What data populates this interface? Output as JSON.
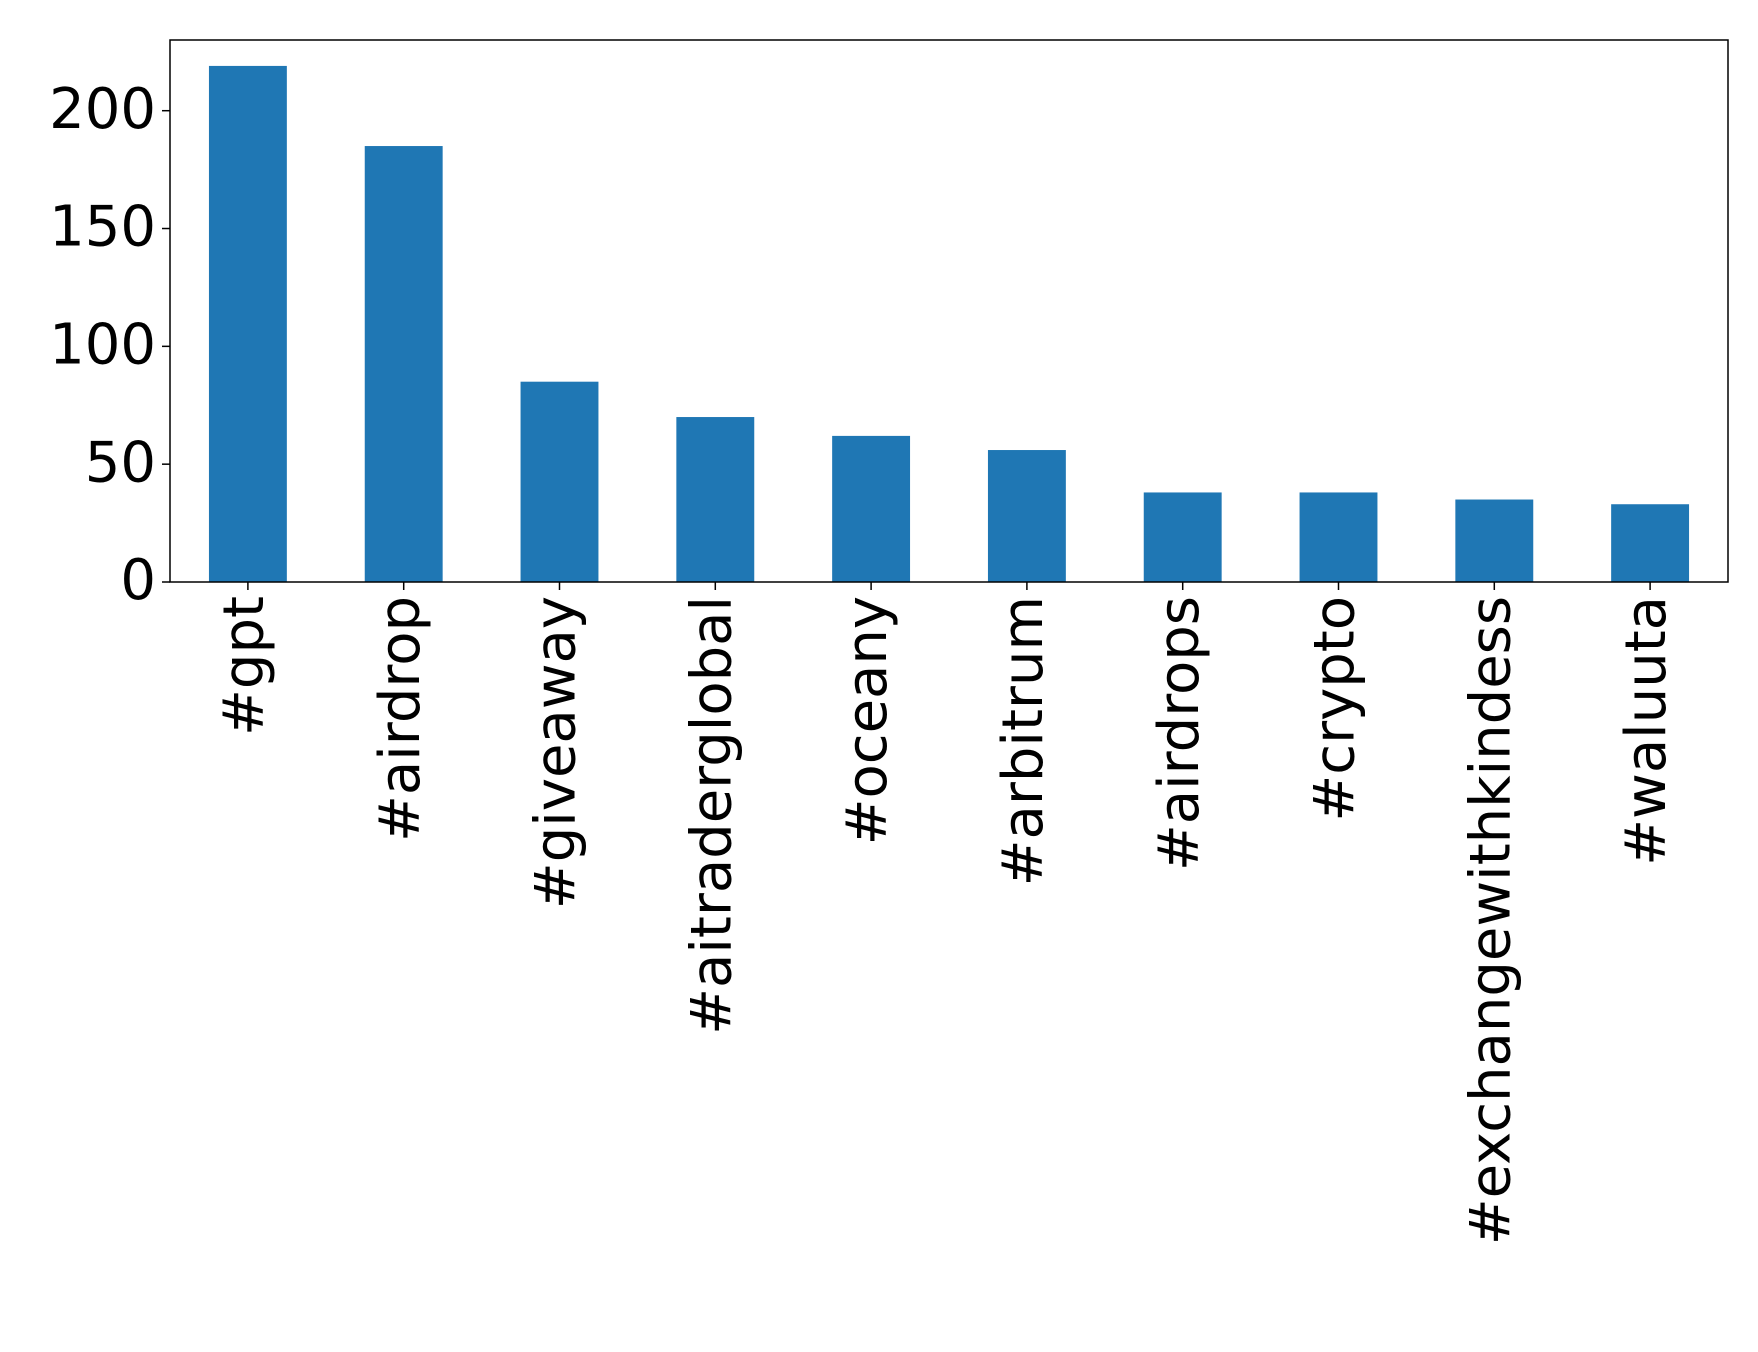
{
  "chart_data": {
    "type": "bar",
    "categories": [
      "#gpt",
      "#airdrop",
      "#giveaway",
      "#aitraderglobal",
      "#oceany",
      "#arbitrum",
      "#airdrops",
      "#crypto",
      "#exchangewithkindess",
      "#waluuta"
    ],
    "values": [
      219,
      185,
      85,
      70,
      62,
      56,
      38,
      38,
      35,
      33
    ],
    "color": "#1f77b4",
    "ylim": [
      0,
      230
    ],
    "yticks": [
      0,
      50,
      100,
      150,
      200
    ],
    "grid": false
  }
}
